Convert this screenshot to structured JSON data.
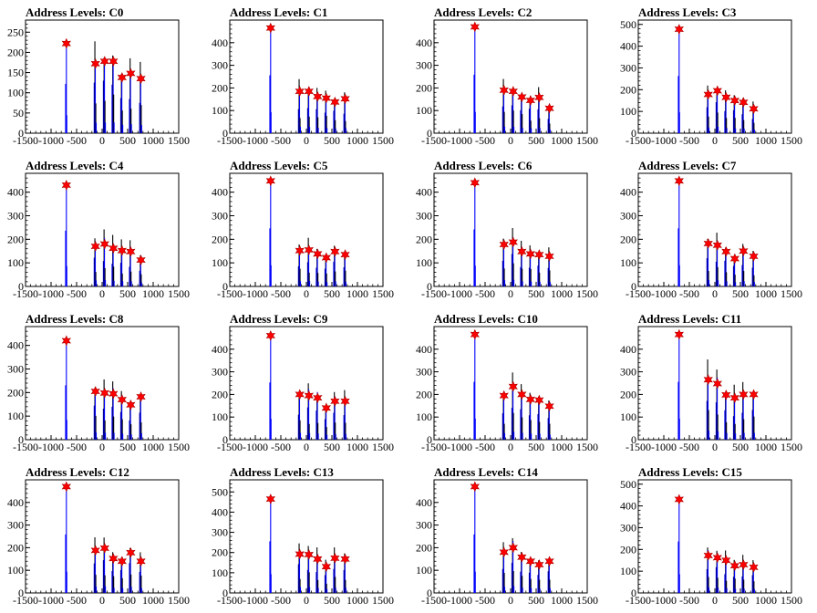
{
  "chart_data": [
    {
      "title": "Address Levels: C0",
      "type": "histogram",
      "xlim": [
        -1500,
        1500
      ],
      "ylim": [
        0,
        280
      ],
      "xticks": [
        -1500,
        -1000,
        -500,
        0,
        500,
        1000,
        1500
      ],
      "yticks": [
        0,
        50,
        100,
        150,
        200,
        250
      ],
      "peaks": [
        {
          "x": -700,
          "y": 222
        },
        {
          "x": -130,
          "y": 172
        },
        {
          "x": 50,
          "y": 178
        },
        {
          "x": 220,
          "y": 178
        },
        {
          "x": 390,
          "y": 138
        },
        {
          "x": 560,
          "y": 148
        },
        {
          "x": 760,
          "y": 135
        }
      ]
    },
    {
      "title": "Address Levels: C1",
      "type": "histogram",
      "xlim": [
        -1500,
        1500
      ],
      "ylim": [
        0,
        500
      ],
      "xticks": [
        -1500,
        -1000,
        -500,
        0,
        500,
        1000,
        1500
      ],
      "yticks": [
        0,
        100,
        200,
        300,
        400
      ],
      "peaks": [
        {
          "x": -700,
          "y": 465
        },
        {
          "x": -130,
          "y": 185
        },
        {
          "x": 50,
          "y": 185
        },
        {
          "x": 220,
          "y": 162
        },
        {
          "x": 390,
          "y": 155
        },
        {
          "x": 560,
          "y": 138
        },
        {
          "x": 760,
          "y": 152
        }
      ]
    },
    {
      "title": "Address Levels: C2",
      "type": "histogram",
      "xlim": [
        -1500,
        1500
      ],
      "ylim": [
        0,
        500
      ],
      "xticks": [
        -1500,
        -1000,
        -500,
        0,
        500,
        1000,
        1500
      ],
      "yticks": [
        0,
        100,
        200,
        300,
        400
      ],
      "peaks": [
        {
          "x": -700,
          "y": 470
        },
        {
          "x": -130,
          "y": 190
        },
        {
          "x": 50,
          "y": 185
        },
        {
          "x": 220,
          "y": 160
        },
        {
          "x": 390,
          "y": 145
        },
        {
          "x": 560,
          "y": 158
        },
        {
          "x": 760,
          "y": 110
        }
      ]
    },
    {
      "title": "Address Levels: C3",
      "type": "histogram",
      "xlim": [
        -1500,
        1500
      ],
      "ylim": [
        0,
        520
      ],
      "xticks": [
        -1500,
        -1000,
        -500,
        0,
        500,
        1000,
        1500
      ],
      "yticks": [
        0,
        100,
        200,
        300,
        400,
        500
      ],
      "peaks": [
        {
          "x": -700,
          "y": 478
        },
        {
          "x": -130,
          "y": 178
        },
        {
          "x": 50,
          "y": 195
        },
        {
          "x": 220,
          "y": 165
        },
        {
          "x": 390,
          "y": 150
        },
        {
          "x": 560,
          "y": 142
        },
        {
          "x": 760,
          "y": 112
        }
      ]
    },
    {
      "title": "Address Levels: C4",
      "type": "histogram",
      "xlim": [
        -1500,
        1500
      ],
      "ylim": [
        0,
        480
      ],
      "xticks": [
        -1500,
        -1000,
        -500,
        0,
        500,
        1000,
        1500
      ],
      "yticks": [
        0,
        100,
        200,
        300,
        400
      ],
      "peaks": [
        {
          "x": -700,
          "y": 430
        },
        {
          "x": -130,
          "y": 170
        },
        {
          "x": 50,
          "y": 180
        },
        {
          "x": 220,
          "y": 162
        },
        {
          "x": 390,
          "y": 152
        },
        {
          "x": 560,
          "y": 148
        },
        {
          "x": 760,
          "y": 112
        }
      ]
    },
    {
      "title": "Address Levels: C5",
      "type": "histogram",
      "xlim": [
        -1500,
        1500
      ],
      "ylim": [
        0,
        480
      ],
      "xticks": [
        -1500,
        -1000,
        -500,
        0,
        500,
        1000,
        1500
      ],
      "yticks": [
        0,
        100,
        200,
        300,
        400
      ],
      "peaks": [
        {
          "x": -700,
          "y": 448
        },
        {
          "x": -130,
          "y": 152
        },
        {
          "x": 50,
          "y": 155
        },
        {
          "x": 220,
          "y": 138
        },
        {
          "x": 390,
          "y": 122
        },
        {
          "x": 560,
          "y": 148
        },
        {
          "x": 760,
          "y": 135
        }
      ]
    },
    {
      "title": "Address Levels: C6",
      "type": "histogram",
      "xlim": [
        -1500,
        1500
      ],
      "ylim": [
        0,
        480
      ],
      "xticks": [
        -1500,
        -1000,
        -500,
        0,
        500,
        1000,
        1500
      ],
      "yticks": [
        0,
        100,
        200,
        300,
        400
      ],
      "peaks": [
        {
          "x": -700,
          "y": 440
        },
        {
          "x": -130,
          "y": 178
        },
        {
          "x": 50,
          "y": 188
        },
        {
          "x": 220,
          "y": 148
        },
        {
          "x": 390,
          "y": 138
        },
        {
          "x": 560,
          "y": 135
        },
        {
          "x": 760,
          "y": 128
        }
      ]
    },
    {
      "title": "Address Levels: C7",
      "type": "histogram",
      "xlim": [
        -1500,
        1500
      ],
      "ylim": [
        0,
        480
      ],
      "xticks": [
        -1500,
        -1000,
        -500,
        0,
        500,
        1000,
        1500
      ],
      "yticks": [
        0,
        100,
        200,
        300,
        400
      ],
      "peaks": [
        {
          "x": -700,
          "y": 448
        },
        {
          "x": -130,
          "y": 182
        },
        {
          "x": 50,
          "y": 175
        },
        {
          "x": 220,
          "y": 148
        },
        {
          "x": 390,
          "y": 118
        },
        {
          "x": 560,
          "y": 150
        },
        {
          "x": 760,
          "y": 128
        }
      ]
    },
    {
      "title": "Address Levels: C8",
      "type": "histogram",
      "xlim": [
        -1500,
        1500
      ],
      "ylim": [
        0,
        480
      ],
      "xticks": [
        -1500,
        -1000,
        -500,
        0,
        500,
        1000,
        1500
      ],
      "yticks": [
        0,
        100,
        200,
        300,
        400
      ],
      "peaks": [
        {
          "x": -700,
          "y": 420
        },
        {
          "x": -130,
          "y": 205
        },
        {
          "x": 50,
          "y": 198
        },
        {
          "x": 220,
          "y": 195
        },
        {
          "x": 390,
          "y": 170
        },
        {
          "x": 560,
          "y": 148
        },
        {
          "x": 760,
          "y": 182
        }
      ]
    },
    {
      "title": "Address Levels: C9",
      "type": "histogram",
      "xlim": [
        -1500,
        1500
      ],
      "ylim": [
        0,
        500
      ],
      "xticks": [
        -1500,
        -1000,
        -500,
        0,
        500,
        1000,
        1500
      ],
      "yticks": [
        0,
        100,
        200,
        300,
        400
      ],
      "peaks": [
        {
          "x": -700,
          "y": 460
        },
        {
          "x": -130,
          "y": 200
        },
        {
          "x": 50,
          "y": 195
        },
        {
          "x": 220,
          "y": 185
        },
        {
          "x": 390,
          "y": 140
        },
        {
          "x": 560,
          "y": 170
        },
        {
          "x": 760,
          "y": 170
        }
      ]
    },
    {
      "title": "Address Levels: C10",
      "type": "histogram",
      "xlim": [
        -1500,
        1500
      ],
      "ylim": [
        0,
        500
      ],
      "xticks": [
        -1500,
        -1000,
        -500,
        0,
        500,
        1000,
        1500
      ],
      "yticks": [
        0,
        100,
        200,
        300,
        400
      ],
      "peaks": [
        {
          "x": -700,
          "y": 465
        },
        {
          "x": -130,
          "y": 195
        },
        {
          "x": 50,
          "y": 235
        },
        {
          "x": 220,
          "y": 200
        },
        {
          "x": 390,
          "y": 178
        },
        {
          "x": 560,
          "y": 175
        },
        {
          "x": 760,
          "y": 148
        }
      ]
    },
    {
      "title": "Address Levels: C11",
      "type": "histogram",
      "xlim": [
        -1500,
        1500
      ],
      "ylim": [
        0,
        500
      ],
      "xticks": [
        -1500,
        -1000,
        -500,
        0,
        500,
        1000,
        1500
      ],
      "yticks": [
        0,
        100,
        200,
        300,
        400
      ],
      "peaks": [
        {
          "x": -700,
          "y": 465
        },
        {
          "x": -130,
          "y": 265
        },
        {
          "x": 50,
          "y": 248
        },
        {
          "x": 220,
          "y": 198
        },
        {
          "x": 390,
          "y": 185
        },
        {
          "x": 560,
          "y": 200
        },
        {
          "x": 760,
          "y": 200
        }
      ]
    },
    {
      "title": "Address Levels: C12",
      "type": "histogram",
      "xlim": [
        -1500,
        1500
      ],
      "ylim": [
        0,
        500
      ],
      "xticks": [
        -1500,
        -1000,
        -500,
        0,
        500,
        1000,
        1500
      ],
      "yticks": [
        0,
        100,
        200,
        300,
        400
      ],
      "peaks": [
        {
          "x": -700,
          "y": 470
        },
        {
          "x": -130,
          "y": 188
        },
        {
          "x": 50,
          "y": 198
        },
        {
          "x": 220,
          "y": 152
        },
        {
          "x": 390,
          "y": 140
        },
        {
          "x": 560,
          "y": 178
        },
        {
          "x": 760,
          "y": 140
        }
      ]
    },
    {
      "title": "Address Levels: C13",
      "type": "histogram",
      "xlim": [
        -1500,
        1500
      ],
      "ylim": [
        0,
        560
      ],
      "xticks": [
        -1500,
        -1000,
        -500,
        0,
        500,
        1000,
        1500
      ],
      "yticks": [
        0,
        100,
        200,
        300,
        400,
        500
      ],
      "peaks": [
        {
          "x": -700,
          "y": 465
        },
        {
          "x": -130,
          "y": 192
        },
        {
          "x": 50,
          "y": 190
        },
        {
          "x": 220,
          "y": 168
        },
        {
          "x": 390,
          "y": 130
        },
        {
          "x": 560,
          "y": 172
        },
        {
          "x": 760,
          "y": 168
        }
      ]
    },
    {
      "title": "Address Levels: C14",
      "type": "histogram",
      "xlim": [
        -1500,
        1500
      ],
      "ylim": [
        0,
        500
      ],
      "xticks": [
        -1500,
        -1000,
        -500,
        0,
        500,
        1000,
        1500
      ],
      "yticks": [
        0,
        100,
        200,
        300,
        400
      ],
      "peaks": [
        {
          "x": -700,
          "y": 470
        },
        {
          "x": -130,
          "y": 180
        },
        {
          "x": 50,
          "y": 200
        },
        {
          "x": 220,
          "y": 158
        },
        {
          "x": 390,
          "y": 140
        },
        {
          "x": 560,
          "y": 125
        },
        {
          "x": 760,
          "y": 140
        }
      ]
    },
    {
      "title": "Address Levels: C15",
      "type": "histogram",
      "xlim": [
        -1500,
        1500
      ],
      "ylim": [
        0,
        520
      ],
      "xticks": [
        -1500,
        -1000,
        -500,
        0,
        500,
        1000,
        1500
      ],
      "yticks": [
        0,
        100,
        200,
        300,
        400,
        500
      ],
      "peaks": [
        {
          "x": -700,
          "y": 430
        },
        {
          "x": -130,
          "y": 172
        },
        {
          "x": 50,
          "y": 162
        },
        {
          "x": 220,
          "y": 150
        },
        {
          "x": 390,
          "y": 125
        },
        {
          "x": 560,
          "y": 130
        },
        {
          "x": 760,
          "y": 118
        }
      ]
    }
  ],
  "colors": {
    "line": "#0000ff",
    "alt_line": "#000000",
    "marker": "#ff0000",
    "axis": "#000000"
  }
}
